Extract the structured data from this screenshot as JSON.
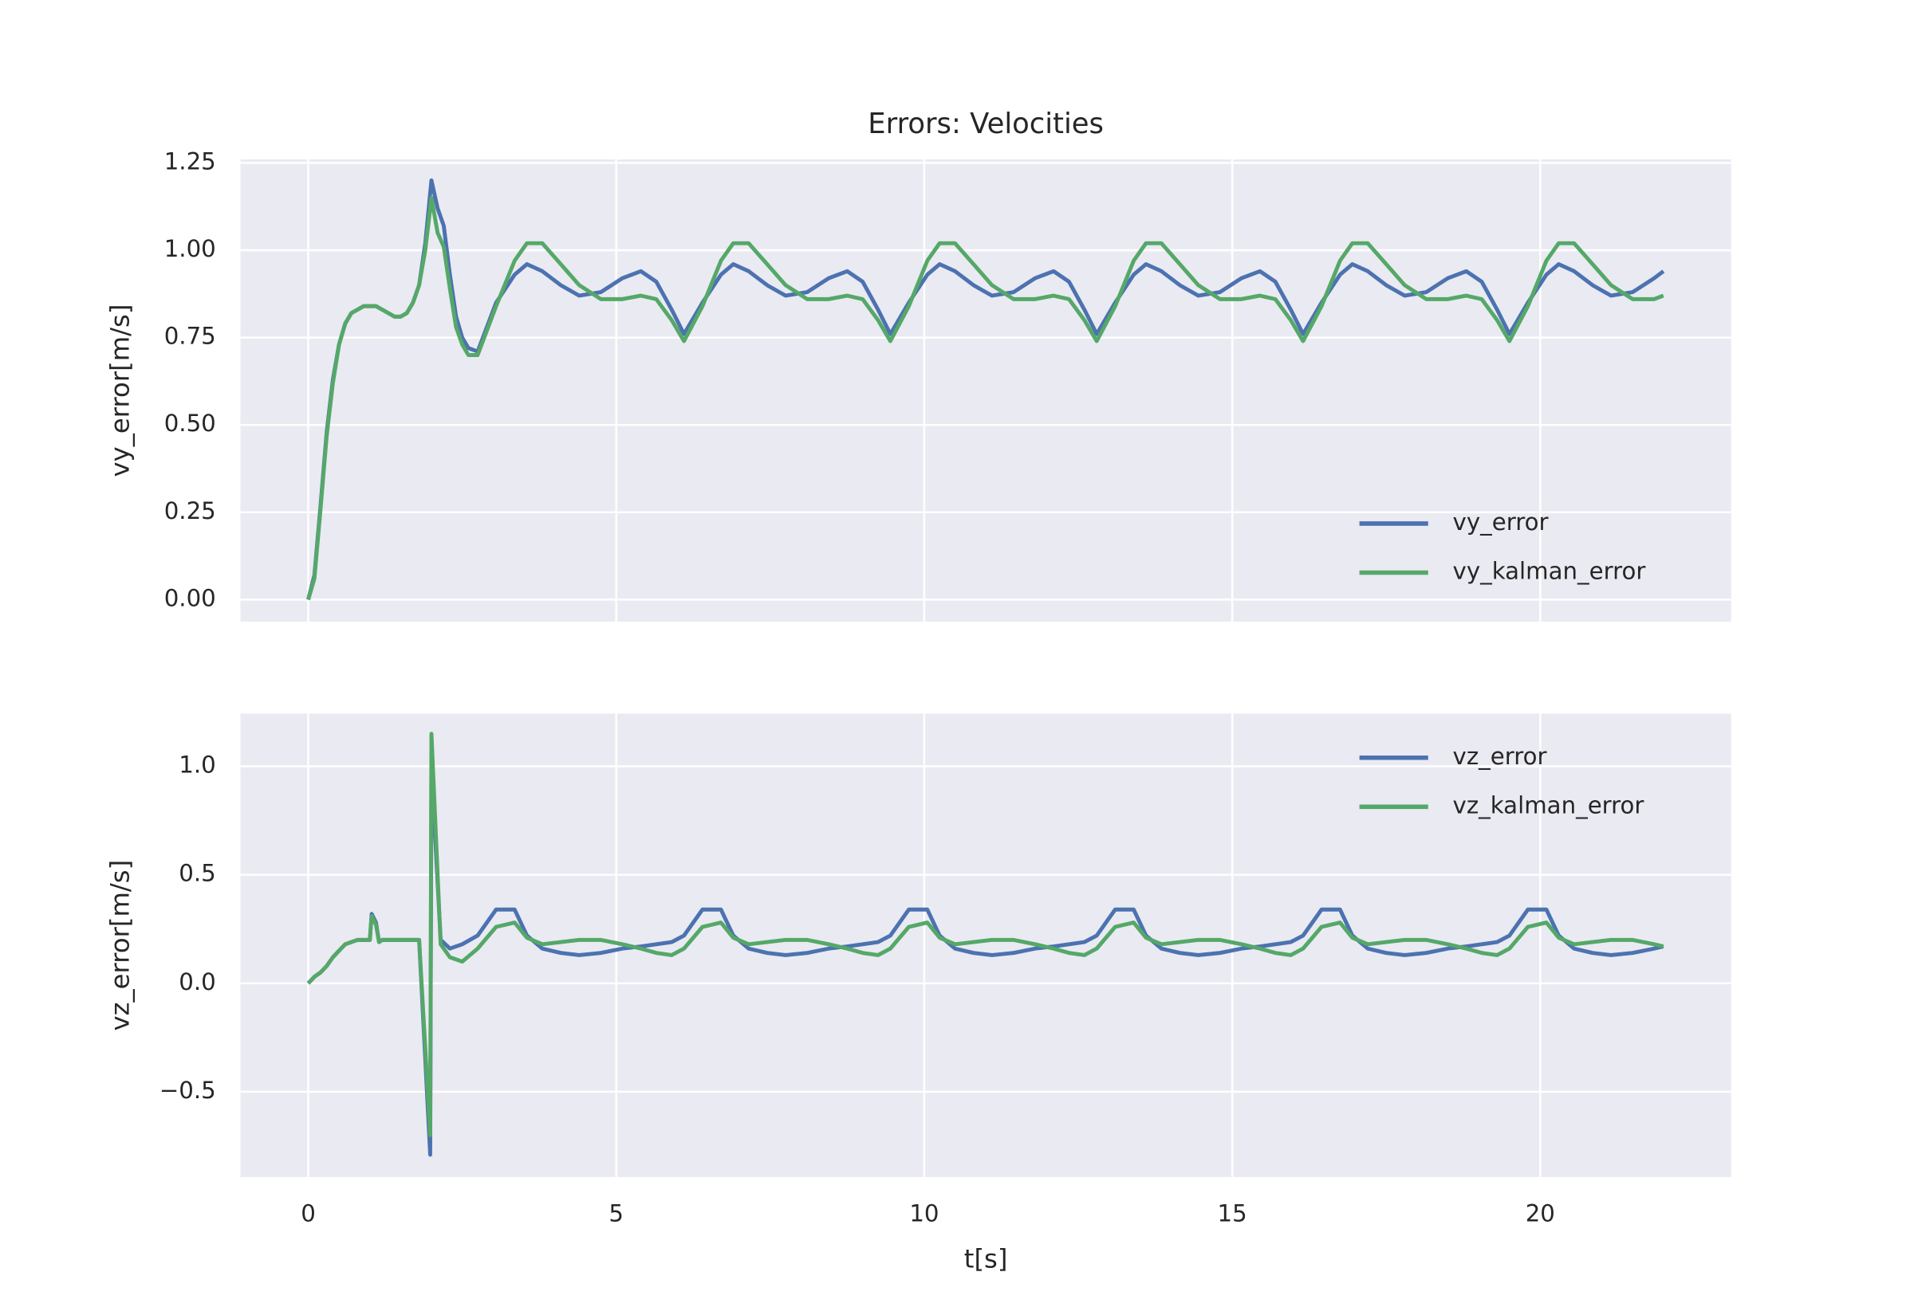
{
  "chart_data": [
    {
      "type": "line",
      "title": "Errors: Velocities",
      "ylabel": "vy_error[m/s]",
      "legend": "lower right",
      "grid": true,
      "xtick_labels": false,
      "xlim": [
        -1.1,
        23.1
      ],
      "xticks": [
        0,
        5,
        10,
        15,
        20
      ],
      "ylim": [
        -0.063,
        1.26
      ],
      "yticks": [
        {
          "value": 0,
          "label": "0.00"
        },
        {
          "value": 0.25,
          "label": "0.25"
        },
        {
          "value": 0.5,
          "label": "0.50"
        },
        {
          "value": 0.75,
          "label": "0.75"
        },
        {
          "value": 1,
          "label": "1.00"
        },
        {
          "value": 1.25,
          "label": "1.25"
        }
      ],
      "x": [
        0,
        0.1,
        0.2,
        0.3,
        0.4,
        0.5,
        0.6,
        0.7,
        0.8,
        0.9,
        1.0,
        1.1,
        1.2,
        1.3,
        1.4,
        1.5,
        1.6,
        1.7,
        1.8,
        1.9,
        2.0,
        2.1,
        2.2,
        2.3,
        2.4,
        2.5,
        2.6,
        2.75,
        3.05,
        3.35,
        3.55,
        3.8,
        4.1,
        4.4,
        4.75,
        5.1,
        5.4,
        5.65,
        5.9,
        6.1,
        6.4,
        6.7,
        6.9,
        7.15,
        7.45,
        7.75,
        8.1,
        8.45,
        8.75,
        9.0,
        9.25,
        9.45,
        9.75,
        10.05,
        10.25,
        10.5,
        10.8,
        11.1,
        11.45,
        11.8,
        12.1,
        12.35,
        12.6,
        12.8,
        13.1,
        13.4,
        13.6,
        13.85,
        14.15,
        14.45,
        14.8,
        15.15,
        15.45,
        15.7,
        15.95,
        16.15,
        16.45,
        16.75,
        16.95,
        17.2,
        17.5,
        17.8,
        18.15,
        18.5,
        18.8,
        19.05,
        19.3,
        19.5,
        19.8,
        20.1,
        20.3,
        20.55,
        20.85,
        21.15,
        21.5,
        21.85,
        22
      ],
      "series": [
        {
          "name": "vy_error",
          "color": "#4c72b0",
          "values": [
            0,
            0.07,
            0.27,
            0.48,
            0.63,
            0.73,
            0.79,
            0.82,
            0.83,
            0.84,
            0.84,
            0.84,
            0.83,
            0.82,
            0.81,
            0.81,
            0.82,
            0.85,
            0.9,
            1.02,
            1.2,
            1.12,
            1.07,
            0.93,
            0.81,
            0.75,
            0.72,
            0.71,
            0.85,
            0.93,
            0.96,
            0.94,
            0.9,
            0.87,
            0.88,
            0.92,
            0.94,
            0.91,
            0.83,
            0.76,
            0.85,
            0.93,
            0.96,
            0.94,
            0.9,
            0.87,
            0.88,
            0.92,
            0.94,
            0.91,
            0.83,
            0.76,
            0.85,
            0.93,
            0.96,
            0.94,
            0.9,
            0.87,
            0.88,
            0.92,
            0.94,
            0.91,
            0.83,
            0.76,
            0.85,
            0.93,
            0.96,
            0.94,
            0.9,
            0.87,
            0.88,
            0.92,
            0.94,
            0.91,
            0.83,
            0.76,
            0.85,
            0.93,
            0.96,
            0.94,
            0.9,
            0.87,
            0.88,
            0.92,
            0.94,
            0.91,
            0.83,
            0.76,
            0.85,
            0.93,
            0.96,
            0.94,
            0.9,
            0.87,
            0.88,
            0.92,
            0.94
          ]
        },
        {
          "name": "vy_kalman_error",
          "color": "#55a868",
          "values": [
            0,
            0.06,
            0.26,
            0.47,
            0.62,
            0.73,
            0.79,
            0.82,
            0.83,
            0.84,
            0.84,
            0.84,
            0.83,
            0.82,
            0.81,
            0.81,
            0.82,
            0.85,
            0.9,
            1.0,
            1.15,
            1.05,
            1.01,
            0.89,
            0.78,
            0.73,
            0.7,
            0.7,
            0.84,
            0.97,
            1.02,
            1.02,
            0.96,
            0.9,
            0.86,
            0.86,
            0.87,
            0.86,
            0.8,
            0.74,
            0.84,
            0.97,
            1.02,
            1.02,
            0.96,
            0.9,
            0.86,
            0.86,
            0.87,
            0.86,
            0.8,
            0.74,
            0.84,
            0.97,
            1.02,
            1.02,
            0.96,
            0.9,
            0.86,
            0.86,
            0.87,
            0.86,
            0.8,
            0.74,
            0.84,
            0.97,
            1.02,
            1.02,
            0.96,
            0.9,
            0.86,
            0.86,
            0.87,
            0.86,
            0.8,
            0.74,
            0.84,
            0.97,
            1.02,
            1.02,
            0.96,
            0.9,
            0.86,
            0.86,
            0.87,
            0.86,
            0.8,
            0.74,
            0.84,
            0.97,
            1.02,
            1.02,
            0.96,
            0.9,
            0.86,
            0.86,
            0.87
          ]
        }
      ]
    },
    {
      "type": "line",
      "xlabel": "t[s]",
      "ylabel": "vz_error[m/s]",
      "legend": "upper right",
      "grid": true,
      "xtick_labels": true,
      "xlim": [
        -1.1,
        23.1
      ],
      "xticks": [
        0,
        5,
        10,
        15,
        20
      ],
      "ylim": [
        -0.893,
        1.243
      ],
      "yticks": [
        {
          "value": -0.5,
          "label": "−0.5"
        },
        {
          "value": 0,
          "label": "0.0"
        },
        {
          "value": 0.5,
          "label": "0.5"
        },
        {
          "value": 1,
          "label": "1.0"
        }
      ],
      "x": [
        0,
        0.1,
        0.2,
        0.3,
        0.4,
        0.5,
        0.6,
        0.7,
        0.8,
        0.9,
        1.0,
        1.03,
        1.1,
        1.15,
        1.2,
        1.4,
        1.6,
        1.8,
        1.98,
        2.0,
        2.15,
        2.3,
        2.5,
        2.75,
        3.05,
        3.35,
        3.55,
        3.8,
        4.1,
        4.4,
        4.75,
        5.1,
        5.4,
        5.65,
        5.9,
        6.1,
        6.4,
        6.7,
        6.9,
        7.15,
        7.45,
        7.75,
        8.1,
        8.45,
        8.75,
        9.0,
        9.25,
        9.45,
        9.75,
        10.05,
        10.25,
        10.5,
        10.8,
        11.1,
        11.45,
        11.8,
        12.1,
        12.35,
        12.6,
        12.8,
        13.1,
        13.4,
        13.6,
        13.85,
        14.15,
        14.45,
        14.8,
        15.15,
        15.45,
        15.7,
        15.95,
        16.15,
        16.45,
        16.75,
        16.95,
        17.2,
        17.5,
        17.8,
        18.15,
        18.5,
        18.8,
        19.05,
        19.3,
        19.5,
        19.8,
        20.1,
        20.3,
        20.55,
        20.85,
        21.15,
        21.5,
        21.85,
        22
      ],
      "series": [
        {
          "name": "vz_error",
          "color": "#4c72b0",
          "values": [
            0,
            0.03,
            0.05,
            0.08,
            0.12,
            0.15,
            0.18,
            0.19,
            0.2,
            0.2,
            0.2,
            0.32,
            0.28,
            0.19,
            0.2,
            0.2,
            0.2,
            0.2,
            -0.79,
            1.0,
            0.2,
            0.16,
            0.18,
            0.22,
            0.34,
            0.34,
            0.22,
            0.16,
            0.14,
            0.13,
            0.14,
            0.16,
            0.17,
            0.18,
            0.19,
            0.22,
            0.34,
            0.34,
            0.22,
            0.16,
            0.14,
            0.13,
            0.14,
            0.16,
            0.17,
            0.18,
            0.19,
            0.22,
            0.34,
            0.34,
            0.22,
            0.16,
            0.14,
            0.13,
            0.14,
            0.16,
            0.17,
            0.18,
            0.19,
            0.22,
            0.34,
            0.34,
            0.22,
            0.16,
            0.14,
            0.13,
            0.14,
            0.16,
            0.17,
            0.18,
            0.19,
            0.22,
            0.34,
            0.34,
            0.22,
            0.16,
            0.14,
            0.13,
            0.14,
            0.16,
            0.17,
            0.18,
            0.19,
            0.22,
            0.34,
            0.34,
            0.22,
            0.16,
            0.14,
            0.13,
            0.14,
            0.16,
            0.17
          ]
        },
        {
          "name": "vz_kalman_error",
          "color": "#55a868",
          "values": [
            0,
            0.03,
            0.05,
            0.08,
            0.12,
            0.15,
            0.18,
            0.19,
            0.2,
            0.2,
            0.2,
            0.31,
            0.27,
            0.19,
            0.2,
            0.2,
            0.2,
            0.2,
            -0.7,
            1.15,
            0.18,
            0.12,
            0.1,
            0.16,
            0.26,
            0.28,
            0.21,
            0.18,
            0.19,
            0.2,
            0.2,
            0.18,
            0.16,
            0.14,
            0.13,
            0.16,
            0.26,
            0.28,
            0.21,
            0.18,
            0.19,
            0.2,
            0.2,
            0.18,
            0.16,
            0.14,
            0.13,
            0.16,
            0.26,
            0.28,
            0.21,
            0.18,
            0.19,
            0.2,
            0.2,
            0.18,
            0.16,
            0.14,
            0.13,
            0.16,
            0.26,
            0.28,
            0.21,
            0.18,
            0.19,
            0.2,
            0.2,
            0.18,
            0.16,
            0.14,
            0.13,
            0.16,
            0.26,
            0.28,
            0.21,
            0.18,
            0.19,
            0.2,
            0.2,
            0.18,
            0.16,
            0.14,
            0.13,
            0.16,
            0.26,
            0.28,
            0.21,
            0.18,
            0.19,
            0.2,
            0.2,
            0.18,
            0.17
          ]
        }
      ]
    }
  ]
}
